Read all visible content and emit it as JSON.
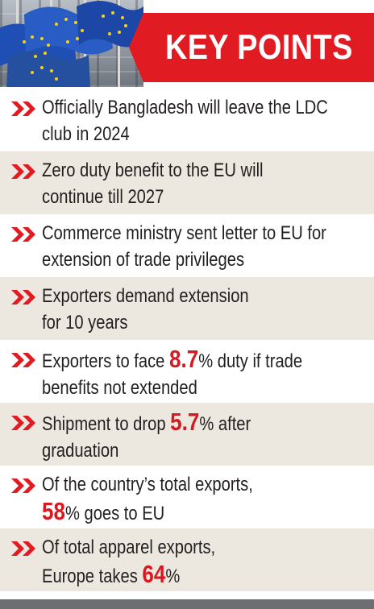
{
  "header": {
    "title": "KEY POINTS"
  },
  "items": [
    {
      "lines": [
        {
          "parts": [
            "Officially Bangladesh will leave the LDC"
          ]
        },
        {
          "parts": [
            "club in 2024"
          ]
        }
      ]
    },
    {
      "lines": [
        {
          "parts": [
            "Zero duty benefit to the EU will"
          ]
        },
        {
          "parts": [
            "continue till 2027"
          ]
        }
      ]
    },
    {
      "lines": [
        {
          "parts": [
            "Commerce ministry sent letter to EU for"
          ]
        },
        {
          "parts": [
            "extension of trade privileges"
          ]
        }
      ]
    },
    {
      "lines": [
        {
          "parts": [
            "Exporters demand extension"
          ]
        },
        {
          "parts": [
            "for 10 years"
          ]
        }
      ]
    },
    {
      "lines": [
        {
          "parts": [
            "Exporters to face ",
            {
              "hl": "8.7"
            },
            "% duty if trade"
          ]
        },
        {
          "parts": [
            "benefits not extended"
          ]
        }
      ]
    },
    {
      "lines": [
        {
          "parts": [
            "Shipment to drop ",
            {
              "hl": "5.7"
            },
            "% after"
          ]
        },
        {
          "parts": [
            "graduation"
          ]
        }
      ]
    },
    {
      "lines": [
        {
          "parts": [
            "Of the country’s total exports,"
          ]
        },
        {
          "parts": [
            {
              "hl": "58"
            },
            "% goes to EU"
          ]
        }
      ]
    },
    {
      "lines": [
        {
          "parts": [
            "Of total apparel exports,"
          ]
        },
        {
          "parts": [
            "Europe takes ",
            {
              "hl": "64"
            },
            "%"
          ]
        }
      ]
    }
  ],
  "colors": {
    "accent": "#e11b22",
    "highlight": "#d71920",
    "shade": "#ece8e0",
    "bar": "#6d6e71"
  },
  "icons": {
    "bullet": "double-chevron-right-icon",
    "photo": "eu-flags-photo"
  }
}
